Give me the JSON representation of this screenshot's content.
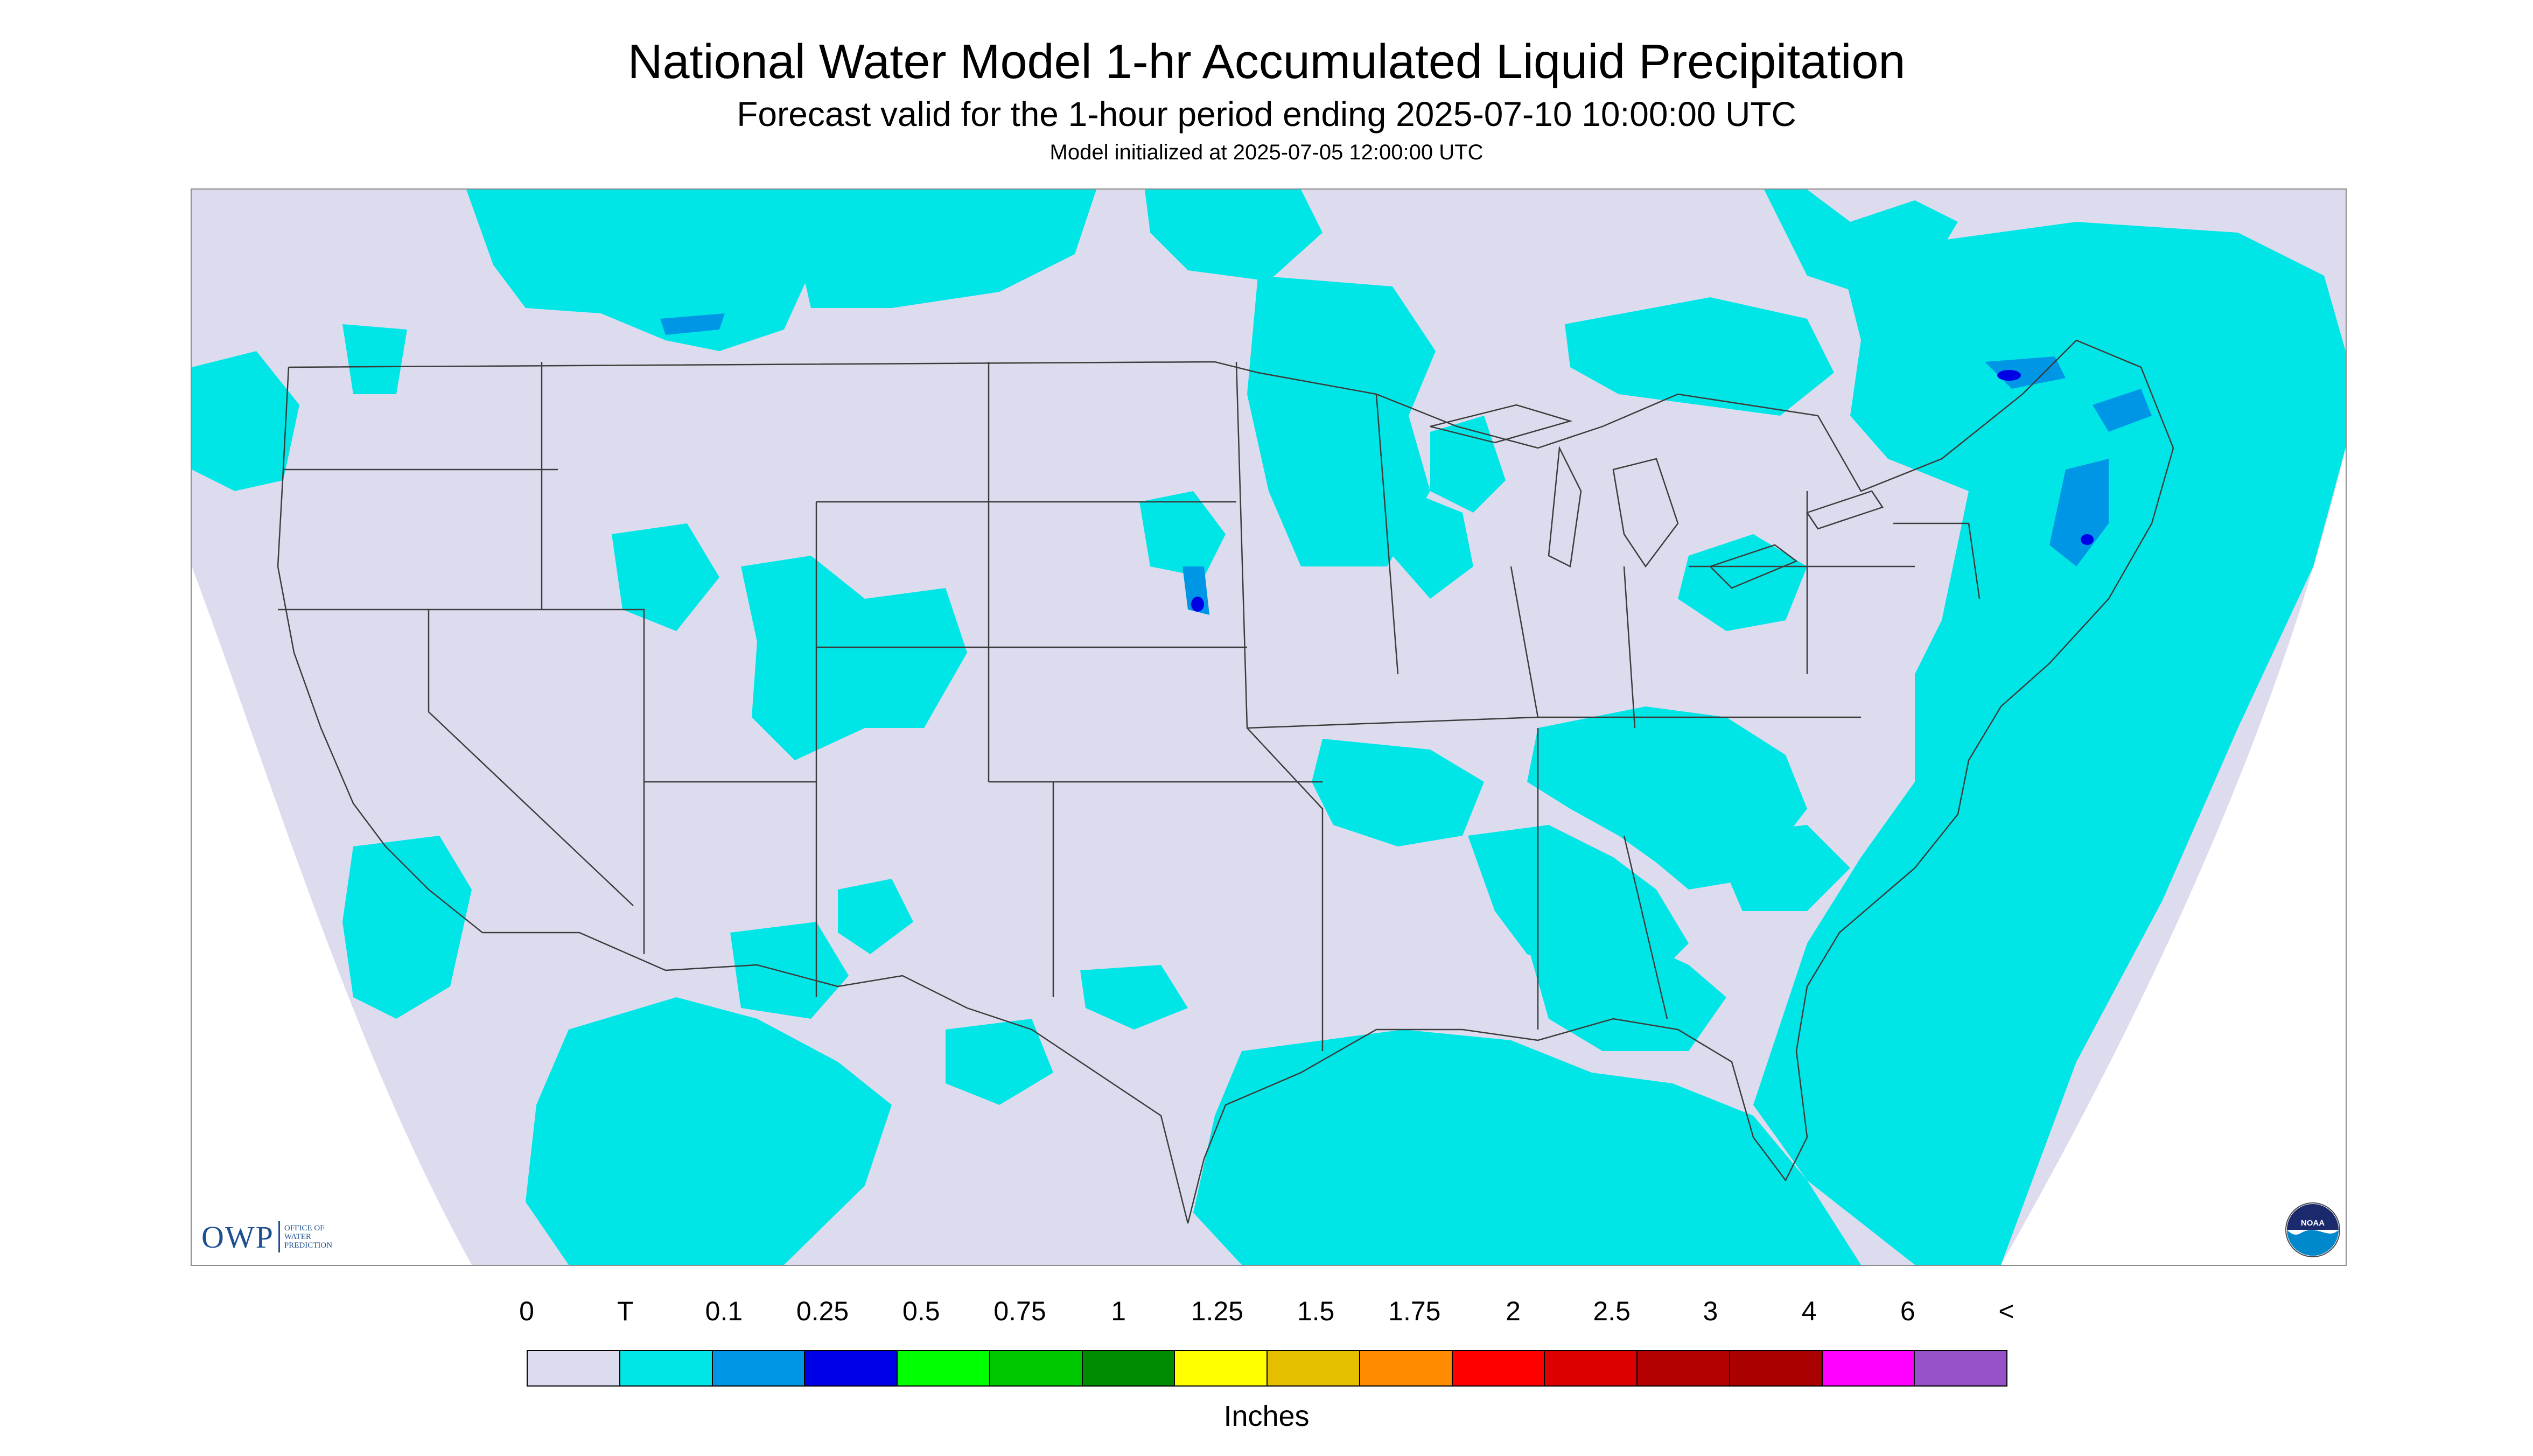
{
  "header": {
    "title": "National Water Model 1-hr Accumulated Liquid Precipitation",
    "subtitle": "Forecast valid for the 1-hour period ending 2025-07-10 10:00:00 UTC",
    "init": "Model initialized at 2025-07-05 12:00:00 UTC"
  },
  "map": {
    "background_color": "#dcdcee",
    "outside_color": "#ffffff",
    "boundary_color": "#3c3c3c",
    "precip_colors": {
      "trace": "#00e6e6",
      "light": "#0096e6",
      "moderate": "#0000e6"
    },
    "logo": {
      "big": "OWP",
      "line1": "OFFICE OF",
      "line2": "WATER",
      "line3": "PREDICTION"
    },
    "noaa_logo": "noaa-logo-icon"
  },
  "legend": {
    "labels": [
      "0",
      "T",
      "0.1",
      "0.25",
      "0.5",
      "0.75",
      "1",
      "1.25",
      "1.5",
      "1.75",
      "2",
      "2.5",
      "3",
      "4",
      "6",
      "<"
    ],
    "colors": [
      "#dcdcee",
      "#00e6e6",
      "#0096e6",
      "#0000e6",
      "#00ff00",
      "#00c800",
      "#008c00",
      "#ffff00",
      "#e6be00",
      "#ff8c00",
      "#ff0000",
      "#dc0000",
      "#b40000",
      "#aa0000",
      "#ff00ff",
      "#9650c8"
    ],
    "units": "Inches"
  }
}
